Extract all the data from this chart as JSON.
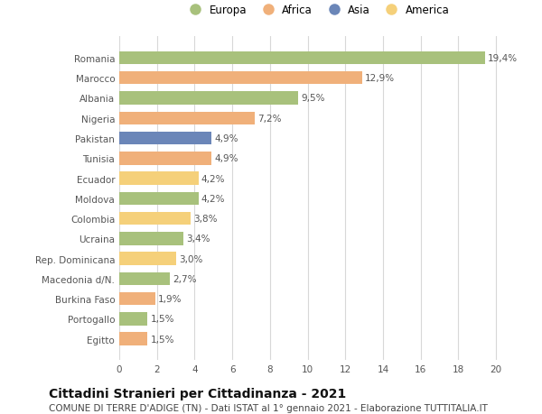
{
  "categories": [
    "Romania",
    "Marocco",
    "Albania",
    "Nigeria",
    "Pakistan",
    "Tunisia",
    "Ecuador",
    "Moldova",
    "Colombia",
    "Ucraina",
    "Rep. Dominicana",
    "Macedonia d/N.",
    "Burkina Faso",
    "Portogallo",
    "Egitto"
  ],
  "values": [
    19.4,
    12.9,
    9.5,
    7.2,
    4.9,
    4.9,
    4.2,
    4.2,
    3.8,
    3.4,
    3.0,
    2.7,
    1.9,
    1.5,
    1.5
  ],
  "labels": [
    "19,4%",
    "12,9%",
    "9,5%",
    "7,2%",
    "4,9%",
    "4,9%",
    "4,2%",
    "4,2%",
    "3,8%",
    "3,4%",
    "3,0%",
    "2,7%",
    "1,9%",
    "1,5%",
    "1,5%"
  ],
  "continents": [
    "Europa",
    "Africa",
    "Europa",
    "Africa",
    "Asia",
    "Africa",
    "America",
    "Europa",
    "America",
    "Europa",
    "America",
    "Europa",
    "Africa",
    "Europa",
    "Africa"
  ],
  "colors": {
    "Europa": "#a8c17c",
    "Africa": "#f0b07a",
    "Asia": "#6b86b8",
    "America": "#f5d07a"
  },
  "legend_order": [
    "Europa",
    "Africa",
    "Asia",
    "America"
  ],
  "title": "Cittadini Stranieri per Cittadinanza - 2021",
  "subtitle": "COMUNE DI TERRE D'ADIGE (TN) - Dati ISTAT al 1° gennaio 2021 - Elaborazione TUTTITALIA.IT",
  "xlim": [
    0,
    21
  ],
  "xticks": [
    0,
    2,
    4,
    6,
    8,
    10,
    12,
    14,
    16,
    18,
    20
  ],
  "background_color": "#ffffff",
  "bar_height": 0.65,
  "grid_color": "#d8d8d8",
  "title_fontsize": 10,
  "subtitle_fontsize": 7.5,
  "label_fontsize": 7.5,
  "tick_fontsize": 7.5,
  "legend_fontsize": 8.5
}
